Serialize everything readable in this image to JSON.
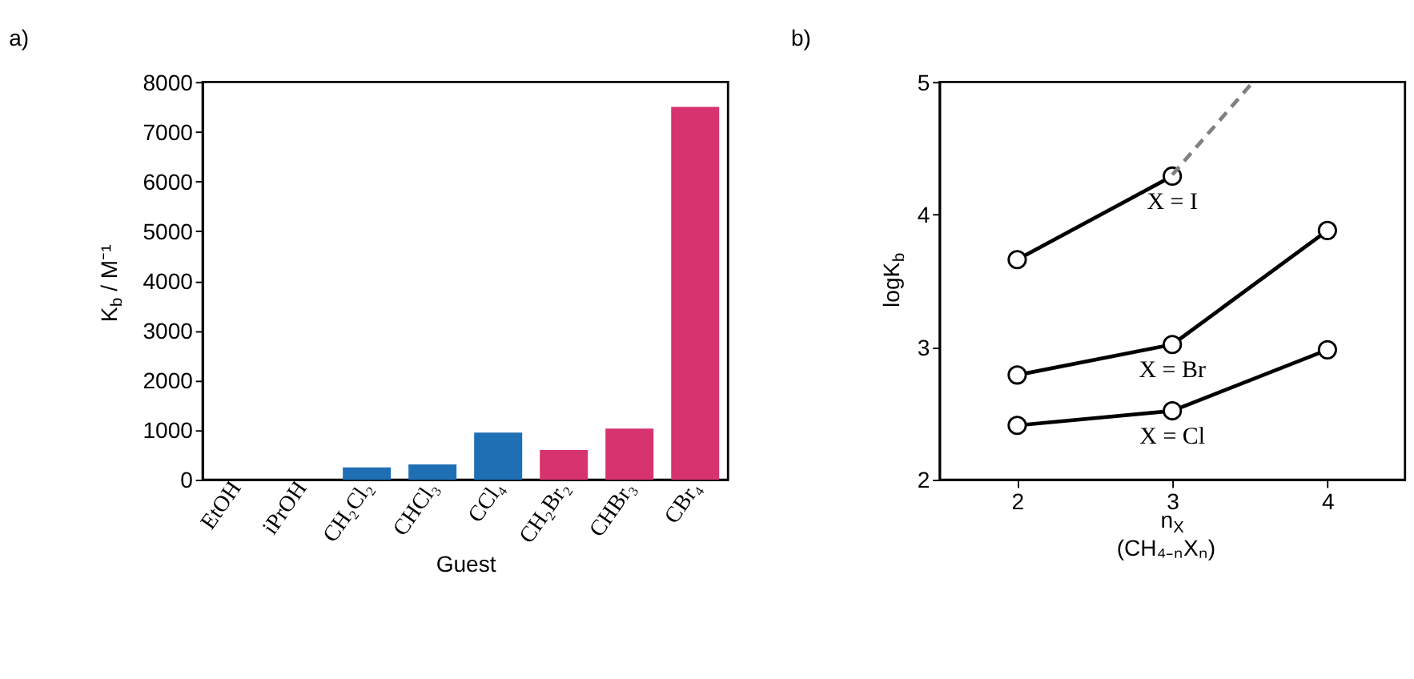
{
  "chart_data": [
    {
      "type": "bar",
      "title": "a)",
      "xlabel": "Guest",
      "ylabel": "K$_{b}$ / M⁻¹",
      "categories": [
        "EtOH",
        "iPrOH",
        "CH₂Cl₂",
        "CHCl₃",
        "CCl₄",
        "CH₂Br₂",
        "CHBr₃",
        "CBr₄"
      ],
      "values": [
        0,
        0,
        250,
        310,
        950,
        600,
        1030,
        7500
      ],
      "colors": [
        "#1f6fb5",
        "#1f6fb5",
        "#1f6fb5",
        "#1f6fb5",
        "#1f6fb5",
        "#d6336f",
        "#d6336f",
        "#d6336f"
      ],
      "ylim": [
        0,
        8000
      ],
      "yticks": [
        0,
        1000,
        2000,
        3000,
        4000,
        5000,
        6000,
        7000,
        8000
      ],
      "grid": false
    },
    {
      "type": "line",
      "title": "b)",
      "xlabel": "n$_{X}$\n(CH₄₋ₙXₙ)",
      "ylabel": "logK$_{b}$",
      "series": [
        {
          "name": "X = I",
          "color": "#000000",
          "x": [
            2,
            3
          ],
          "values": [
            3.66,
            4.29
          ],
          "marker": "circle",
          "line_style": "solid"
        },
        {
          "name": "X = Br",
          "color": "#000000",
          "x": [
            2,
            3,
            4
          ],
          "values": [
            2.79,
            3.02,
            3.88
          ],
          "marker": "circle",
          "line_style": "solid"
        },
        {
          "name": "X = Cl",
          "color": "#000000",
          "x": [
            2,
            3,
            4
          ],
          "values": [
            2.41,
            2.52,
            2.98
          ],
          "marker": "circle",
          "line_style": "solid"
        },
        {
          "color": "#808080",
          "x": [
            3,
            3.52
          ],
          "values": [
            4.3,
            5.0
          ],
          "marker": "none",
          "line_style": "dashed"
        }
      ],
      "xlim": [
        1.5,
        4.5
      ],
      "xticks": [
        2,
        3,
        4
      ],
      "ylim": [
        2,
        5
      ],
      "yticks": [
        2,
        3,
        4,
        5
      ],
      "grid": false
    }
  ]
}
